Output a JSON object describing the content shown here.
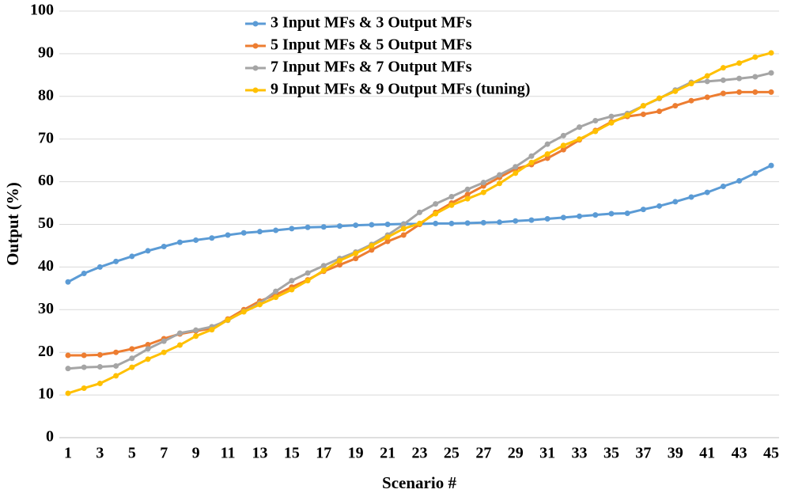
{
  "chart_data": {
    "type": "line",
    "x_label": "Scenario #",
    "y_label": "Output (%)",
    "categories": [
      "1",
      null,
      "3",
      null,
      "5",
      null,
      "7",
      null,
      "9",
      null,
      "11",
      null,
      "13",
      null,
      "15",
      null,
      "17",
      null,
      "19",
      null,
      "21",
      null,
      "23",
      null,
      "25",
      null,
      "27",
      null,
      "29",
      null,
      "31",
      null,
      "33",
      null,
      "35",
      null,
      "37",
      null,
      "39",
      null,
      "41",
      null,
      "43",
      null,
      "45"
    ],
    "series": [
      {
        "name": "3 Input MFs & 3 Output MFs",
        "color": "#5b9bd5",
        "values": [
          36.5,
          38.5,
          40,
          41.3,
          42.5,
          43.8,
          44.8,
          45.8,
          46.3,
          46.8,
          47.5,
          48,
          48.3,
          48.6,
          49,
          49.3,
          49.4,
          49.6,
          49.8,
          49.9,
          50,
          50.1,
          50.1,
          50.2,
          50.2,
          50.3,
          50.4,
          50.5,
          50.8,
          51,
          51.3,
          51.6,
          51.9,
          52.2,
          52.5,
          52.6,
          53.5,
          54.3,
          55.3,
          56.4,
          57.5,
          58.9,
          60.2,
          62,
          63.8
        ]
      },
      {
        "name": "5 Input MFs & 5 Output MFs",
        "color": "#ed7d31",
        "values": [
          19.3,
          19.3,
          19.4,
          20,
          20.8,
          21.8,
          23.2,
          24.3,
          25,
          25.6,
          27.8,
          30,
          32,
          33.5,
          35.3,
          37,
          39,
          40.5,
          42,
          44,
          46,
          47.5,
          50,
          52.8,
          55,
          57,
          59,
          61,
          63,
          64,
          65.5,
          67.5,
          69.8,
          72,
          74,
          75.3,
          75.8,
          76.5,
          77.8,
          79,
          79.8,
          80.7,
          81,
          81,
          81
        ]
      },
      {
        "name": "7 Input MFs & 7 Output MFs",
        "color": "#a5a5a5",
        "values": [
          16.2,
          16.5,
          16.6,
          16.8,
          18.6,
          20.8,
          22.6,
          24.5,
          25.2,
          26,
          27.5,
          29.6,
          31.5,
          34.3,
          36.8,
          38.6,
          40.3,
          42,
          43.5,
          45.3,
          47.5,
          50,
          52.8,
          54.8,
          56.5,
          58.2,
          59.8,
          61.6,
          63.5,
          66,
          68.8,
          70.8,
          72.8,
          74.3,
          75.3,
          76,
          77.8,
          79.5,
          81.5,
          83.3,
          83.5,
          83.8,
          84.2,
          84.6,
          85.5
        ]
      },
      {
        "name": "9 Input MFs & 9 Output MFs (tuning)",
        "color": "#ffc000",
        "values": [
          10.4,
          11.6,
          12.7,
          14.5,
          16.5,
          18.4,
          20,
          21.7,
          23.8,
          25.3,
          27.6,
          29.5,
          31.2,
          32.9,
          34.7,
          36.8,
          39.2,
          41.5,
          43.2,
          45,
          47,
          49,
          50.2,
          52.5,
          54.5,
          56,
          57.5,
          59.6,
          62,
          64.5,
          66.5,
          68.5,
          70,
          71.8,
          73.8,
          75.6,
          77.8,
          79.6,
          81.2,
          83,
          84.8,
          86.7,
          87.8,
          89.2,
          90.2
        ]
      }
    ],
    "ylim": [
      0,
      100
    ],
    "yticks": [
      0,
      10,
      20,
      30,
      40,
      50,
      60,
      70,
      80,
      90,
      100
    ],
    "grid": true,
    "legend": "top"
  }
}
